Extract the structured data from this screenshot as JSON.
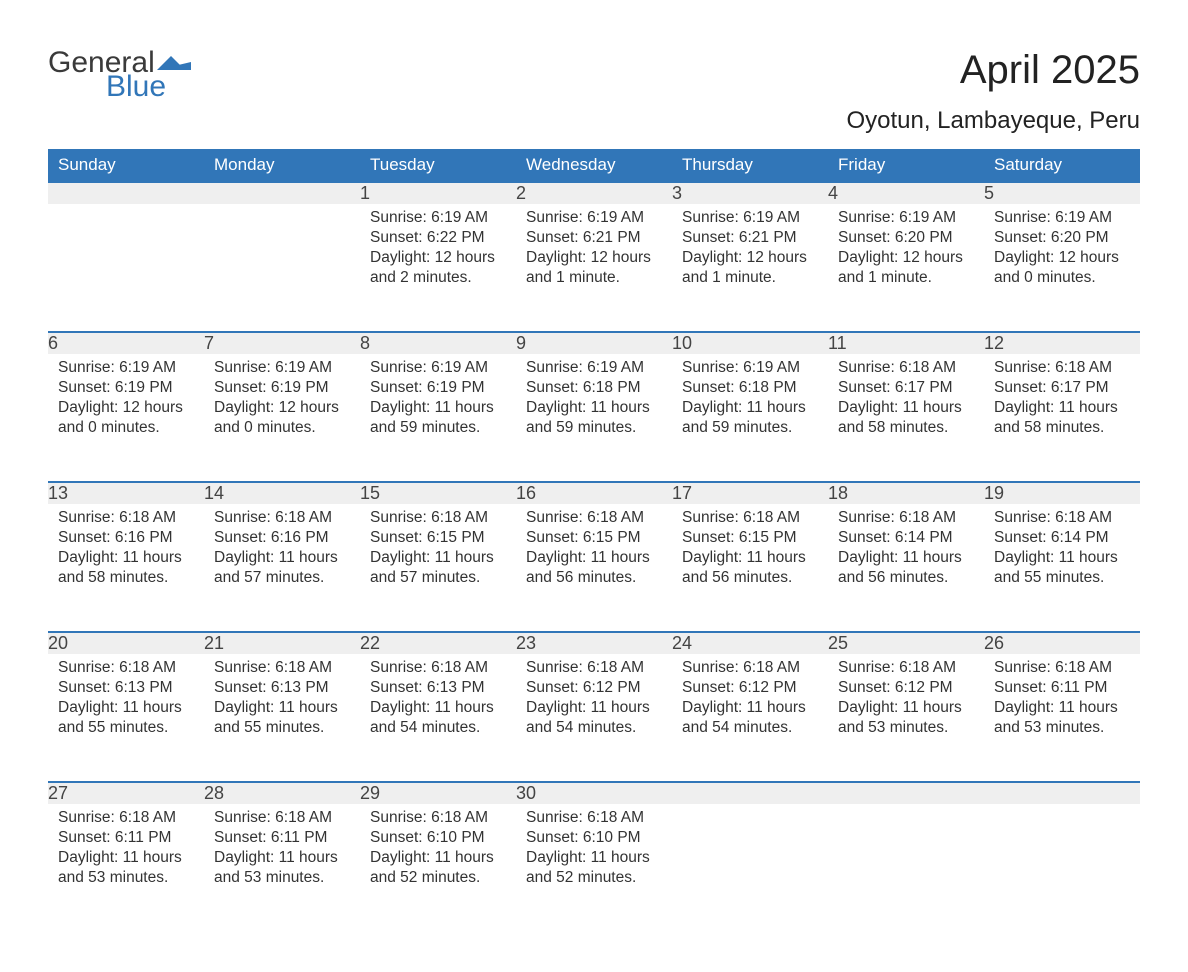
{
  "logo": {
    "text1": "General",
    "text2": "Blue",
    "flag_color": "#3176b8"
  },
  "title": "April 2025",
  "location": "Oyotun, Lambayeque, Peru",
  "colors": {
    "header_bg": "#3176b8",
    "header_text": "#ffffff",
    "daynum_bg": "#efefef",
    "daynum_border": "#3176b8",
    "body_text": "#333333",
    "background": "#ffffff"
  },
  "weekdays": [
    "Sunday",
    "Monday",
    "Tuesday",
    "Wednesday",
    "Thursday",
    "Friday",
    "Saturday"
  ],
  "weeks": [
    [
      null,
      null,
      {
        "n": "1",
        "sunrise": "6:19 AM",
        "sunset": "6:22 PM",
        "daylight": "12 hours and 2 minutes."
      },
      {
        "n": "2",
        "sunrise": "6:19 AM",
        "sunset": "6:21 PM",
        "daylight": "12 hours and 1 minute."
      },
      {
        "n": "3",
        "sunrise": "6:19 AM",
        "sunset": "6:21 PM",
        "daylight": "12 hours and 1 minute."
      },
      {
        "n": "4",
        "sunrise": "6:19 AM",
        "sunset": "6:20 PM",
        "daylight": "12 hours and 1 minute."
      },
      {
        "n": "5",
        "sunrise": "6:19 AM",
        "sunset": "6:20 PM",
        "daylight": "12 hours and 0 minutes."
      }
    ],
    [
      {
        "n": "6",
        "sunrise": "6:19 AM",
        "sunset": "6:19 PM",
        "daylight": "12 hours and 0 minutes."
      },
      {
        "n": "7",
        "sunrise": "6:19 AM",
        "sunset": "6:19 PM",
        "daylight": "12 hours and 0 minutes."
      },
      {
        "n": "8",
        "sunrise": "6:19 AM",
        "sunset": "6:19 PM",
        "daylight": "11 hours and 59 minutes."
      },
      {
        "n": "9",
        "sunrise": "6:19 AM",
        "sunset": "6:18 PM",
        "daylight": "11 hours and 59 minutes."
      },
      {
        "n": "10",
        "sunrise": "6:19 AM",
        "sunset": "6:18 PM",
        "daylight": "11 hours and 59 minutes."
      },
      {
        "n": "11",
        "sunrise": "6:18 AM",
        "sunset": "6:17 PM",
        "daylight": "11 hours and 58 minutes."
      },
      {
        "n": "12",
        "sunrise": "6:18 AM",
        "sunset": "6:17 PM",
        "daylight": "11 hours and 58 minutes."
      }
    ],
    [
      {
        "n": "13",
        "sunrise": "6:18 AM",
        "sunset": "6:16 PM",
        "daylight": "11 hours and 58 minutes."
      },
      {
        "n": "14",
        "sunrise": "6:18 AM",
        "sunset": "6:16 PM",
        "daylight": "11 hours and 57 minutes."
      },
      {
        "n": "15",
        "sunrise": "6:18 AM",
        "sunset": "6:15 PM",
        "daylight": "11 hours and 57 minutes."
      },
      {
        "n": "16",
        "sunrise": "6:18 AM",
        "sunset": "6:15 PM",
        "daylight": "11 hours and 56 minutes."
      },
      {
        "n": "17",
        "sunrise": "6:18 AM",
        "sunset": "6:15 PM",
        "daylight": "11 hours and 56 minutes."
      },
      {
        "n": "18",
        "sunrise": "6:18 AM",
        "sunset": "6:14 PM",
        "daylight": "11 hours and 56 minutes."
      },
      {
        "n": "19",
        "sunrise": "6:18 AM",
        "sunset": "6:14 PM",
        "daylight": "11 hours and 55 minutes."
      }
    ],
    [
      {
        "n": "20",
        "sunrise": "6:18 AM",
        "sunset": "6:13 PM",
        "daylight": "11 hours and 55 minutes."
      },
      {
        "n": "21",
        "sunrise": "6:18 AM",
        "sunset": "6:13 PM",
        "daylight": "11 hours and 55 minutes."
      },
      {
        "n": "22",
        "sunrise": "6:18 AM",
        "sunset": "6:13 PM",
        "daylight": "11 hours and 54 minutes."
      },
      {
        "n": "23",
        "sunrise": "6:18 AM",
        "sunset": "6:12 PM",
        "daylight": "11 hours and 54 minutes."
      },
      {
        "n": "24",
        "sunrise": "6:18 AM",
        "sunset": "6:12 PM",
        "daylight": "11 hours and 54 minutes."
      },
      {
        "n": "25",
        "sunrise": "6:18 AM",
        "sunset": "6:12 PM",
        "daylight": "11 hours and 53 minutes."
      },
      {
        "n": "26",
        "sunrise": "6:18 AM",
        "sunset": "6:11 PM",
        "daylight": "11 hours and 53 minutes."
      }
    ],
    [
      {
        "n": "27",
        "sunrise": "6:18 AM",
        "sunset": "6:11 PM",
        "daylight": "11 hours and 53 minutes."
      },
      {
        "n": "28",
        "sunrise": "6:18 AM",
        "sunset": "6:11 PM",
        "daylight": "11 hours and 53 minutes."
      },
      {
        "n": "29",
        "sunrise": "6:18 AM",
        "sunset": "6:10 PM",
        "daylight": "11 hours and 52 minutes."
      },
      {
        "n": "30",
        "sunrise": "6:18 AM",
        "sunset": "6:10 PM",
        "daylight": "11 hours and 52 minutes."
      },
      null,
      null,
      null
    ]
  ],
  "labels": {
    "sunrise": "Sunrise: ",
    "sunset": "Sunset: ",
    "daylight": "Daylight: "
  }
}
